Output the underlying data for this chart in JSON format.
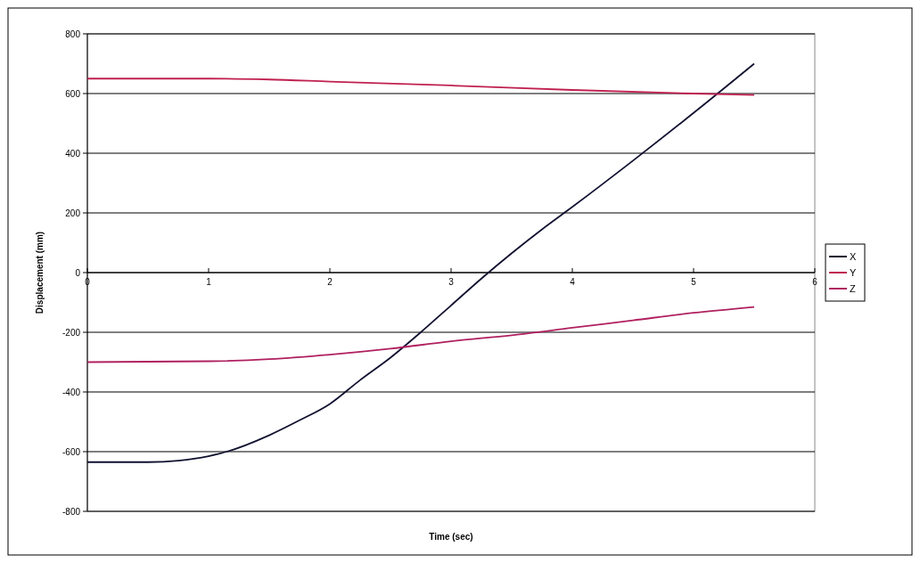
{
  "chart_data": {
    "type": "line",
    "xlabel": "Time (sec)",
    "ylabel": "Displacement (mm)",
    "xlim": [
      0,
      6
    ],
    "xticks": [
      0,
      1,
      2,
      3,
      4,
      5,
      6
    ],
    "ylim": [
      -800,
      800
    ],
    "yticks": [
      -800,
      -600,
      -400,
      -200,
      0,
      200,
      400,
      600,
      800
    ],
    "grid": "y",
    "legend": "right",
    "marker": "none",
    "line_style": "solid",
    "series": [
      {
        "name": "X",
        "color": "#101030",
        "x": [
          0,
          0.5,
          0.75,
          1,
          1.15,
          1.5,
          1.75,
          2,
          2.25,
          2.5,
          2.75,
          3,
          3.25,
          3.5,
          3.75,
          4,
          4.5,
          5,
          5.5
        ],
        "values": [
          -635,
          -635,
          -630,
          -615,
          -600,
          -545,
          -495,
          -440,
          -360,
          -285,
          -200,
          -110,
          -20,
          65,
          145,
          220,
          375,
          535,
          700
        ]
      },
      {
        "name": "Y",
        "color": "#c02050",
        "x": [
          0,
          1,
          1.5,
          2,
          3,
          4,
          5,
          5.5
        ],
        "values": [
          650,
          650,
          647,
          640,
          627,
          612,
          600,
          595
        ]
      },
      {
        "name": "Z",
        "color": "#b02060",
        "x": [
          0,
          1,
          1.5,
          2,
          2.5,
          3,
          3.5,
          4,
          4.5,
          5,
          5.5
        ],
        "values": [
          -300,
          -297,
          -290,
          -275,
          -255,
          -230,
          -210,
          -185,
          -160,
          -135,
          -115
        ]
      }
    ]
  }
}
